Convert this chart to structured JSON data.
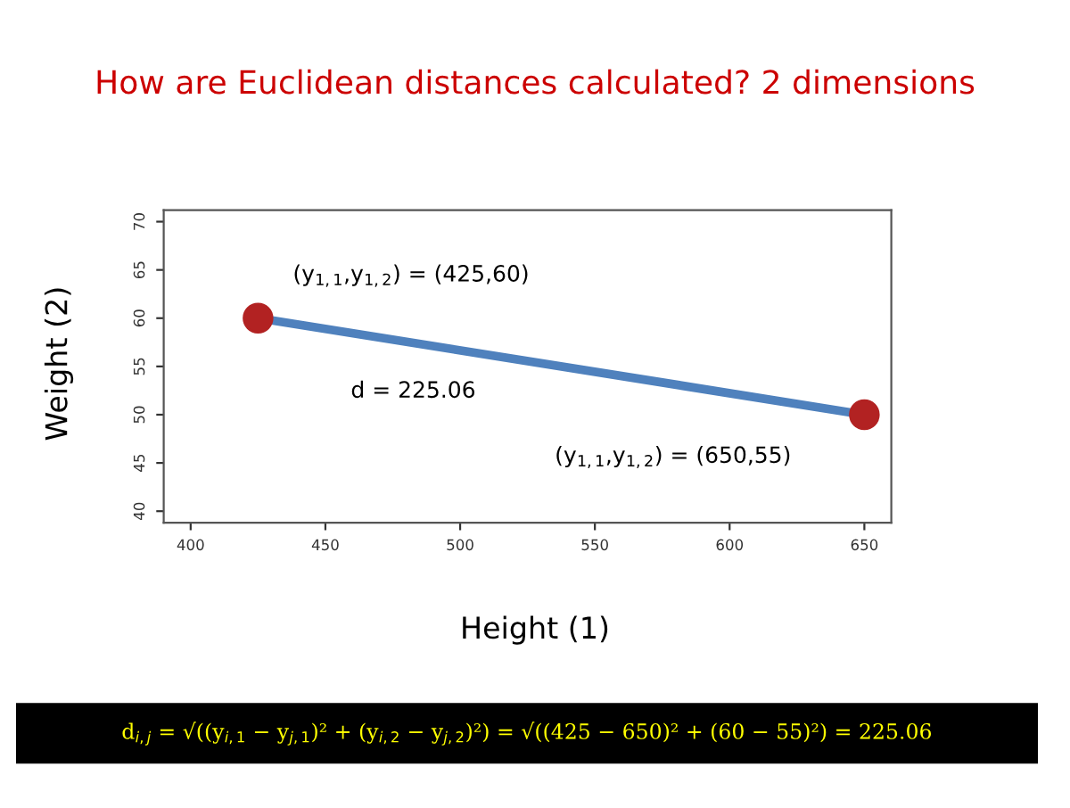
{
  "chart_data": {
    "type": "line",
    "title": "How are Euclidean distances calculated? 2 dimensions",
    "xlabel": "Height (1)",
    "ylabel": "Weight (2)",
    "x": [
      425,
      650
    ],
    "series": [
      {
        "color": "#4f81bd",
        "values": [
          60,
          50
        ]
      },
      {
        "type": "scatter",
        "color": "#b22222",
        "values": [
          60,
          50
        ],
        "marker": "circle"
      }
    ],
    "xlim": [
      390,
      660
    ],
    "ylim": [
      38.8,
      71.2
    ],
    "xticks": [
      400,
      450,
      500,
      550,
      600,
      650
    ],
    "yticks": [
      40,
      45,
      50,
      55,
      60,
      65,
      70
    ],
    "grid": false,
    "annotations": [
      "(y$_{1,1}$,y$_{1,2}$) = (425,60)",
      "d = 225.06",
      "(y$_{1,1}$,y$_{1,2}$) = (650,55)",
      "d$_{i,j}$ = √((y$_{i,1}$ − y$_{j,1}$)² + (y$_{i,2}$ − y$_{j,2}$)²) = √((425 − 650)² + (60 − 55)²) = 225.06"
    ]
  }
}
